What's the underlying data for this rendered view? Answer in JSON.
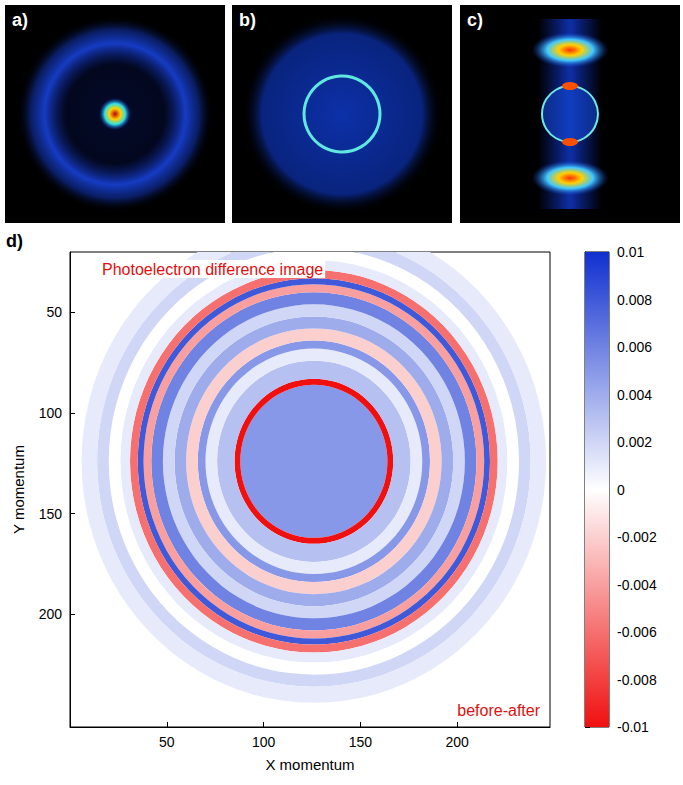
{
  "chart_data": {
    "type": "heatmap",
    "panels": [
      {
        "label": "a)"
      },
      {
        "label": "b)"
      },
      {
        "label": "c)"
      }
    ],
    "panel_label": "d)",
    "title": "Photoelectron difference image",
    "annotation": "before-after",
    "x_label": "X momentum",
    "y_label": "Y momentum",
    "xlim": [
      0,
      248
    ],
    "ylim": [
      256,
      20
    ],
    "xticks": [
      50,
      100,
      150,
      200
    ],
    "yticks": [
      50,
      100,
      150,
      200
    ],
    "center": [
      126,
      124
    ],
    "rings": [
      {
        "r_inner": 0,
        "r_outer": 38,
        "value": 0.005
      },
      {
        "r_inner": 38,
        "r_outer": 41,
        "value": -0.01
      },
      {
        "r_inner": 41,
        "r_outer": 50,
        "value": 0.003
      },
      {
        "r_inner": 50,
        "r_outer": 56,
        "value": 0.001
      },
      {
        "r_inner": 56,
        "r_outer": 60,
        "value": 0.005
      },
      {
        "r_inner": 60,
        "r_outer": 66,
        "value": -0.002
      },
      {
        "r_inner": 66,
        "r_outer": 72,
        "value": 0.004
      },
      {
        "r_inner": 72,
        "r_outer": 78,
        "value": 0.002
      },
      {
        "r_inner": 78,
        "r_outer": 84,
        "value": 0.006
      },
      {
        "r_inner": 84,
        "r_outer": 88,
        "value": -0.004
      },
      {
        "r_inner": 88,
        "r_outer": 91,
        "value": 0.008
      },
      {
        "r_inner": 91,
        "r_outer": 95,
        "value": -0.006
      },
      {
        "r_inner": 95,
        "r_outer": 100,
        "value": 0.001
      },
      {
        "r_inner": 100,
        "r_outer": 106,
        "value": 0
      },
      {
        "r_inner": 106,
        "r_outer": 112,
        "value": 0.002
      },
      {
        "r_inner": 112,
        "r_outer": 120,
        "value": 0.001
      }
    ],
    "colorbar": {
      "range": [
        -0.01,
        0.01
      ],
      "ticks": [
        -0.01,
        -0.008,
        -0.006,
        -0.004,
        -0.002,
        0,
        0.002,
        0.004,
        0.006,
        0.008,
        0.01
      ]
    }
  }
}
